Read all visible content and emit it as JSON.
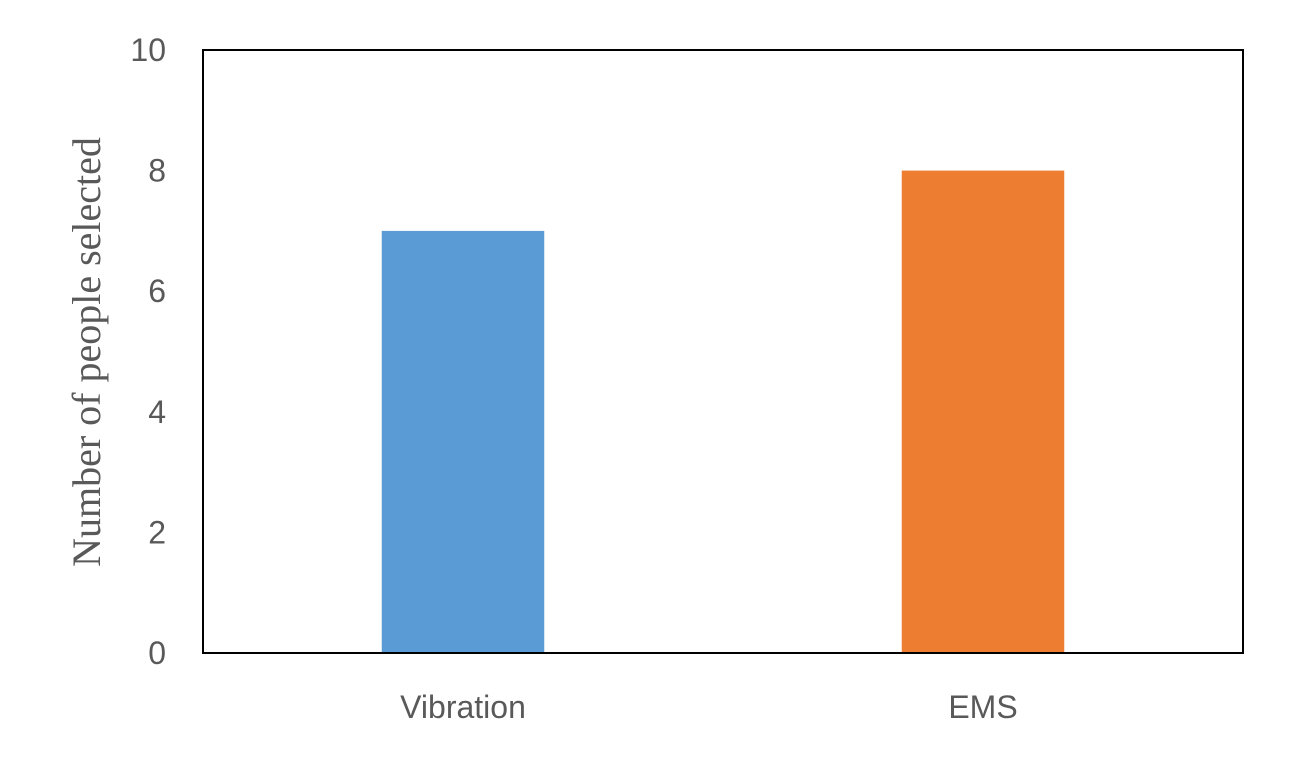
{
  "chart_data": {
    "type": "bar",
    "categories": [
      "Vibration",
      "EMS"
    ],
    "values": [
      7,
      8
    ],
    "bar_colors": [
      "#5b9bd5",
      "#ed7d31"
    ],
    "title": "",
    "xlabel": "",
    "ylabel": "Number of people selected",
    "ylim": [
      0,
      10
    ],
    "yticks": [
      "0",
      "2",
      "4",
      "6",
      "8",
      "10"
    ],
    "grid": false,
    "legend": "none"
  }
}
